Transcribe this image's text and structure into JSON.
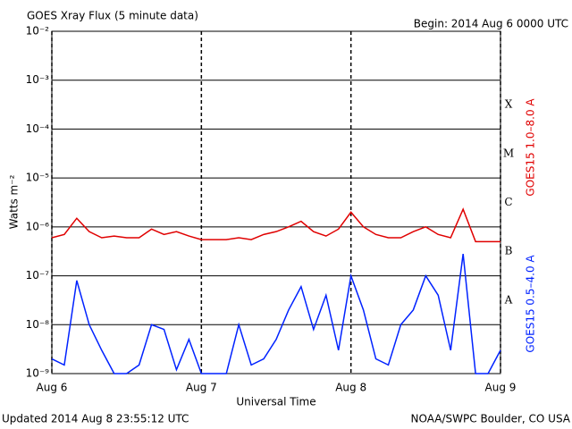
{
  "chart_data": {
    "type": "line",
    "title": "GOES Xray Flux (5 minute data)",
    "subtitle": "Begin:  2014 Aug 6 0000 UTC",
    "x_label": "Universal Time",
    "y_label": "Watts m⁻²",
    "footer_left": "Updated 2014 Aug  8 23:55:12 UTC",
    "footer_right": "NOAA/SWPC Boulder, CO USA",
    "annotations": [
      "X",
      "M",
      "C",
      "B",
      "A"
    ],
    "log_scale": true,
    "grid": true,
    "xlim": [
      0,
      72
    ],
    "xticks": [
      {
        "value": 0,
        "label": "Aug 6"
      },
      {
        "value": 24,
        "label": "Aug 7"
      },
      {
        "value": 48,
        "label": "Aug 8"
      },
      {
        "value": 72,
        "label": "Aug 9"
      }
    ],
    "ylim": [
      1e-09,
      0.01
    ],
    "yticks": [
      {
        "value": 1e-09,
        "label": "10⁻⁹"
      },
      {
        "value": 1e-08,
        "label": "10⁻⁸"
      },
      {
        "value": 1e-07,
        "label": "10⁻⁷"
      },
      {
        "value": 1e-06,
        "label": "10⁻⁶"
      },
      {
        "value": 1e-05,
        "label": "10⁻⁵"
      },
      {
        "value": 0.0001,
        "label": "10⁻⁴"
      },
      {
        "value": 0.001,
        "label": "10⁻³"
      },
      {
        "value": 0.01,
        "label": "10⁻²"
      }
    ],
    "x": [
      0,
      2,
      4,
      6,
      8,
      10,
      12,
      14,
      16,
      18,
      20,
      22,
      24,
      26,
      28,
      30,
      32,
      34,
      36,
      38,
      40,
      42,
      44,
      46,
      48,
      50,
      52,
      54,
      56,
      58,
      60,
      62,
      64,
      66,
      68,
      70,
      72
    ],
    "series": [
      {
        "name": "GOES15 1.0–8.0 A",
        "color": "#e00000",
        "values": [
          6e-07,
          7e-07,
          1.5e-06,
          8e-07,
          6e-07,
          6.5e-07,
          6e-07,
          6e-07,
          9e-07,
          7e-07,
          8e-07,
          6.5e-07,
          5.5e-07,
          5.5e-07,
          5.5e-07,
          6e-07,
          5.5e-07,
          7e-07,
          8e-07,
          1e-06,
          1.3e-06,
          8e-07,
          6.5e-07,
          9e-07,
          2e-06,
          1e-06,
          7e-07,
          6e-07,
          6e-07,
          8e-07,
          1e-06,
          7e-07,
          6e-07,
          2.3e-06,
          5e-07,
          5e-07,
          5e-07
        ]
      },
      {
        "name": "GOES15 0.5–4.0 A",
        "color": "#0022ff",
        "values": [
          2e-09,
          1.5e-09,
          8e-08,
          1e-08,
          3e-09,
          1e-09,
          1e-09,
          1.5e-09,
          1e-08,
          8e-09,
          1.2e-09,
          5e-09,
          1e-09,
          1e-09,
          1e-09,
          1e-08,
          1.5e-09,
          2e-09,
          5e-09,
          2e-08,
          6e-08,
          8e-09,
          4e-08,
          3e-09,
          1e-07,
          2e-08,
          2e-09,
          1.5e-09,
          1e-08,
          2e-08,
          1e-07,
          4e-08,
          3e-09,
          2.8e-07,
          1e-09,
          1e-09,
          3e-09
        ]
      }
    ]
  }
}
